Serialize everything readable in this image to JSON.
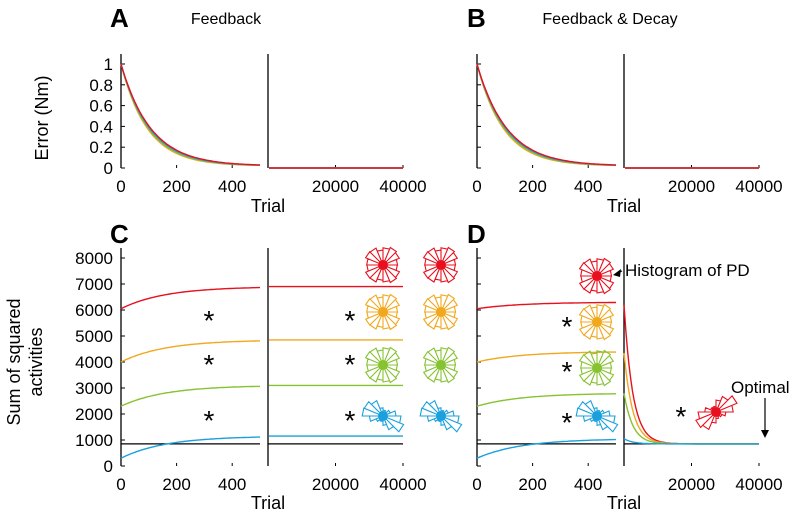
{
  "colors": {
    "red": "#e8101e",
    "orange": "#f0a81e",
    "green": "#86c232",
    "blue": "#1aa0dc",
    "black": "#000000"
  },
  "panels": {
    "A": {
      "letter": "A",
      "title": "Feedback"
    },
    "B": {
      "letter": "B",
      "title": "Feedback & Decay"
    },
    "C": {
      "letter": "C"
    },
    "D": {
      "letter": "D"
    }
  },
  "labels": {
    "error_ylabel": "Error (Nm)",
    "activity_ylabel_line1": "Sum of squared",
    "activity_ylabel_line2": "activities",
    "xlabel": "Trial",
    "star": "*"
  },
  "annotations": {
    "histogram": "Histogram of PD",
    "optimal": "Optimal"
  },
  "chart_data": [
    {
      "type": "line",
      "panel": "A",
      "ylabel": "Error (Nm)",
      "xlabel": "Trial",
      "yticks": [
        "0",
        "0.2",
        "0.4",
        "0.6",
        "0.8",
        "1"
      ],
      "ylim": [
        0,
        1
      ],
      "left": {
        "xlim": [
          0,
          500
        ],
        "xticks": [
          "0",
          "200",
          "400"
        ]
      },
      "right": {
        "xlim": [
          0,
          40000
        ],
        "xticks": [
          "20000",
          "40000"
        ]
      },
      "series": [
        {
          "color": "orange",
          "start": 1.0,
          "end_left": 0.02,
          "end_right": 0.0
        },
        {
          "color": "green",
          "start": 1.0,
          "end_left": 0.02,
          "end_right": 0.0
        },
        {
          "color": "blue",
          "start": 1.0,
          "end_left": 0.02,
          "end_right": 0.0
        },
        {
          "color": "red",
          "start": 1.0,
          "end_left": 0.02,
          "end_right": 0.0
        }
      ]
    },
    {
      "type": "line",
      "panel": "B",
      "xlabel": "Trial",
      "ylim": [
        0,
        1
      ],
      "left": {
        "xlim": [
          0,
          500
        ],
        "xticks": [
          "0",
          "200",
          "400"
        ]
      },
      "right": {
        "xlim": [
          0,
          40000
        ],
        "xticks": [
          "20000",
          "40000"
        ]
      },
      "series": [
        {
          "color": "orange",
          "start": 1.0,
          "end_left": 0.02,
          "end_right": 0.0
        },
        {
          "color": "green",
          "start": 1.0,
          "end_left": 0.02,
          "end_right": 0.0
        },
        {
          "color": "blue",
          "start": 1.0,
          "end_left": 0.02,
          "end_right": 0.0
        },
        {
          "color": "red",
          "start": 1.0,
          "end_left": 0.02,
          "end_right": 0.0
        }
      ]
    },
    {
      "type": "line",
      "panel": "C",
      "ylabel": "Sum of squared activities",
      "xlabel": "Trial",
      "yticks": [
        "0",
        "1000",
        "2000",
        "3000",
        "4000",
        "5000",
        "6000",
        "7000",
        "8000"
      ],
      "ylim": [
        0,
        8000
      ],
      "left": {
        "xlim": [
          0,
          500
        ],
        "xticks": [
          "0",
          "200",
          "400"
        ]
      },
      "right": {
        "xlim": [
          0,
          40000
        ],
        "xticks": [
          "20000",
          "40000"
        ]
      },
      "optimal": 850,
      "series": [
        {
          "color": "red",
          "start": 6050,
          "plateau": 6900,
          "mode": "flat"
        },
        {
          "color": "orange",
          "start": 4000,
          "plateau": 4850,
          "mode": "flat"
        },
        {
          "color": "green",
          "start": 2300,
          "plateau": 3100,
          "mode": "flat"
        },
        {
          "color": "blue",
          "start": 300,
          "plateau": 1150,
          "mode": "flat"
        }
      ]
    },
    {
      "type": "line",
      "panel": "D",
      "xlabel": "Trial",
      "ylim": [
        0,
        8000
      ],
      "left": {
        "xlim": [
          0,
          500
        ],
        "xticks": [
          "0",
          "200",
          "400"
        ]
      },
      "right": {
        "xlim": [
          0,
          40000
        ],
        "xticks": [
          "20000",
          "40000"
        ]
      },
      "optimal": 850,
      "series": [
        {
          "color": "red",
          "start": 6050,
          "plateau": 6300,
          "mode": "decay",
          "right_start": 6200
        },
        {
          "color": "orange",
          "start": 4000,
          "plateau": 4400,
          "mode": "decay",
          "right_start": 4350
        },
        {
          "color": "green",
          "start": 2300,
          "plateau": 2800,
          "mode": "decay",
          "right_start": 2800
        },
        {
          "color": "blue",
          "start": 300,
          "plateau": 1050,
          "mode": "decay",
          "right_start": 1050
        }
      ]
    }
  ]
}
